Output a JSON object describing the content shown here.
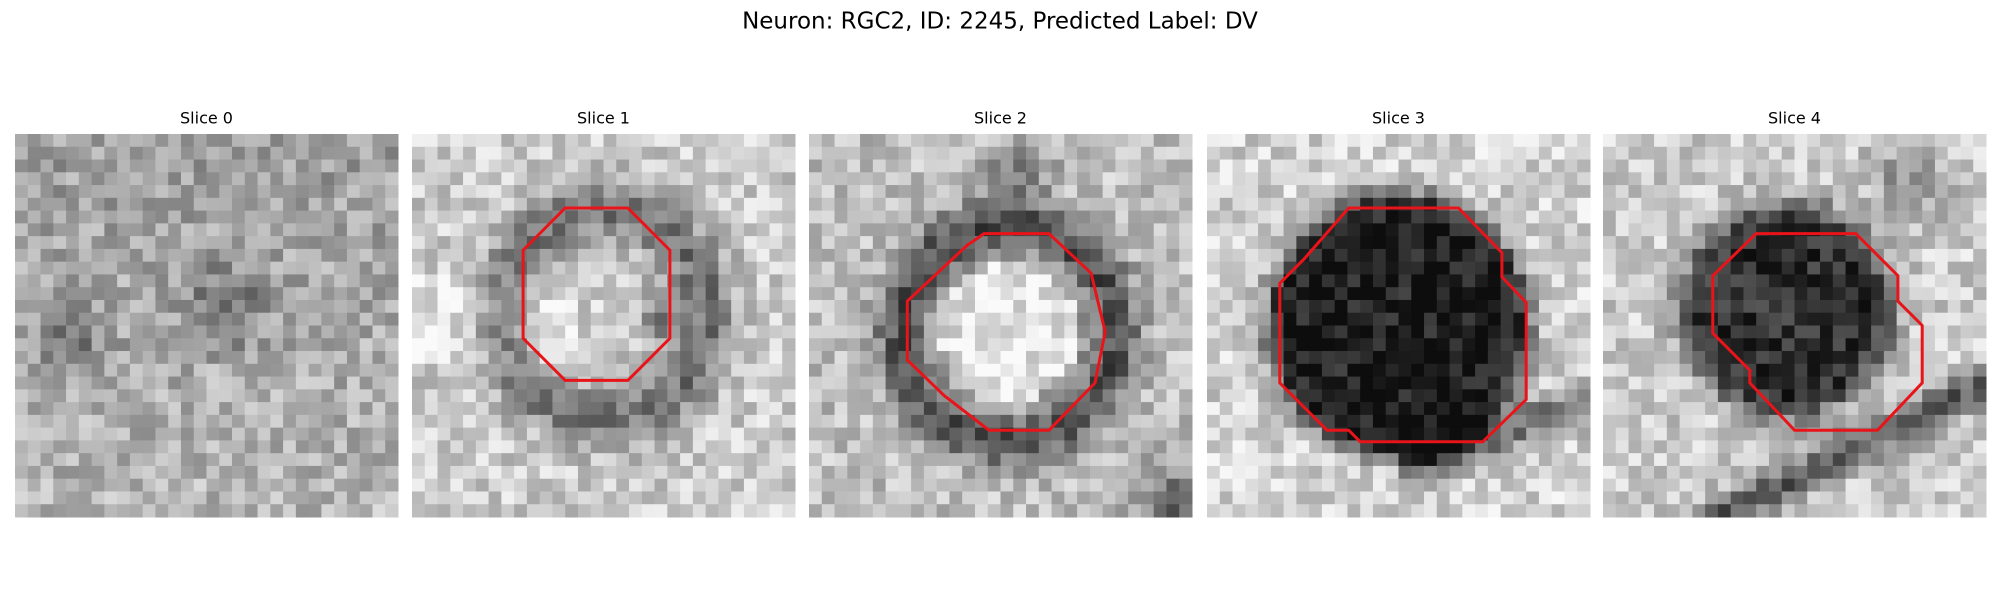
{
  "header": {
    "title": "Neuron: RGC2, ID: 2245, Predicted Label: DV"
  },
  "panels": [
    {
      "title": "Slice 0"
    },
    {
      "title": "Slice 1"
    },
    {
      "title": "Slice 2"
    },
    {
      "title": "Slice 3"
    },
    {
      "title": "Slice 4"
    }
  ]
}
